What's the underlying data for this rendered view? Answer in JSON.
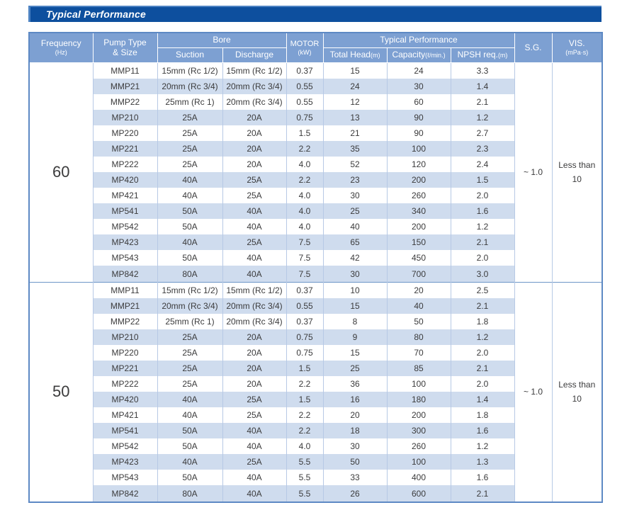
{
  "title": "Typical Performance",
  "colors": {
    "title_bar": "#0d4f9e",
    "title_bar_edge": "#4d83c3",
    "header_blue": "#7da0d2",
    "stripe_blue": "#cfdcee",
    "outer_border": "#5d89c4",
    "cell_border": "#b7c9e5",
    "text": "#3b3b3c"
  },
  "table": {
    "headers": {
      "frequency": "Frequency",
      "frequency_unit": "(Hz)",
      "pump_type_line1": "Pump Type",
      "pump_type_line2": "& Size",
      "bore": "Bore",
      "suction": "Suction",
      "discharge": "Discharge",
      "motor": "MOTOR",
      "motor_unit": "(kW)",
      "typical_performance": "Typical Performance",
      "total_head": "Total Head",
      "total_head_unit": "(m)",
      "capacity": "Capacity",
      "capacity_unit": "(ℓ/min.)",
      "npsh": "NPSH req.",
      "npsh_unit": "(m)",
      "sg": "S.G.",
      "vis": "VIS.",
      "vis_unit": "(mPa·s)"
    },
    "groups": [
      {
        "frequency": "60",
        "sg": "~ 1.0",
        "vis_line1": "Less than",
        "vis_line2": "10",
        "rows": [
          [
            "MMP11",
            "15mm (Rc 1/2)",
            "15mm (Rc 1/2)",
            "0.37",
            "15",
            "24",
            "3.3"
          ],
          [
            "MMP21",
            "20mm (Rc 3/4)",
            "20mm (Rc 3/4)",
            "0.55",
            "24",
            "30",
            "1.4"
          ],
          [
            "MMP22",
            "25mm (Rc 1)",
            "20mm (Rc 3/4)",
            "0.55",
            "12",
            "60",
            "2.1"
          ],
          [
            "MP210",
            "25A",
            "20A",
            "0.75",
            "13",
            "90",
            "1.2"
          ],
          [
            "MP220",
            "25A",
            "20A",
            "1.5",
            "21",
            "90",
            "2.7"
          ],
          [
            "MP221",
            "25A",
            "20A",
            "2.2",
            "35",
            "100",
            "2.3"
          ],
          [
            "MP222",
            "25A",
            "20A",
            "4.0",
            "52",
            "120",
            "2.4"
          ],
          [
            "MP420",
            "40A",
            "25A",
            "2.2",
            "23",
            "200",
            "1.5"
          ],
          [
            "MP421",
            "40A",
            "25A",
            "4.0",
            "30",
            "260",
            "2.0"
          ],
          [
            "MP541",
            "50A",
            "40A",
            "4.0",
            "25",
            "340",
            "1.6"
          ],
          [
            "MP542",
            "50A",
            "40A",
            "4.0",
            "40",
            "200",
            "1.2"
          ],
          [
            "MP423",
            "40A",
            "25A",
            "7.5",
            "65",
            "150",
            "2.1"
          ],
          [
            "MP543",
            "50A",
            "40A",
            "7.5",
            "42",
            "450",
            "2.0"
          ],
          [
            "MP842",
            "80A",
            "40A",
            "7.5",
            "30",
            "700",
            "3.0"
          ]
        ]
      },
      {
        "frequency": "50",
        "sg": "~ 1.0",
        "vis_line1": "Less than",
        "vis_line2": "10",
        "rows": [
          [
            "MMP11",
            "15mm (Rc 1/2)",
            "15mm (Rc 1/2)",
            "0.37",
            "10",
            "20",
            "2.5"
          ],
          [
            "MMP21",
            "20mm (Rc 3/4)",
            "20mm (Rc 3/4)",
            "0.55",
            "15",
            "40",
            "2.1"
          ],
          [
            "MMP22",
            "25mm (Rc 1)",
            "20mm (Rc 3/4)",
            "0.37",
            "8",
            "50",
            "1.8"
          ],
          [
            "MP210",
            "25A",
            "20A",
            "0.75",
            "9",
            "80",
            "1.2"
          ],
          [
            "MP220",
            "25A",
            "20A",
            "0.75",
            "15",
            "70",
            "2.0"
          ],
          [
            "MP221",
            "25A",
            "20A",
            "1.5",
            "25",
            "85",
            "2.1"
          ],
          [
            "MP222",
            "25A",
            "20A",
            "2.2",
            "36",
            "100",
            "2.0"
          ],
          [
            "MP420",
            "40A",
            "25A",
            "1.5",
            "16",
            "180",
            "1.4"
          ],
          [
            "MP421",
            "40A",
            "25A",
            "2.2",
            "20",
            "200",
            "1.8"
          ],
          [
            "MP541",
            "50A",
            "40A",
            "2.2",
            "18",
            "300",
            "1.6"
          ],
          [
            "MP542",
            "50A",
            "40A",
            "4.0",
            "30",
            "260",
            "1.2"
          ],
          [
            "MP423",
            "40A",
            "25A",
            "5.5",
            "50",
            "100",
            "1.3"
          ],
          [
            "MP543",
            "50A",
            "40A",
            "5.5",
            "33",
            "400",
            "1.6"
          ],
          [
            "MP842",
            "80A",
            "40A",
            "5.5",
            "26",
            "600",
            "2.1"
          ]
        ]
      }
    ]
  }
}
